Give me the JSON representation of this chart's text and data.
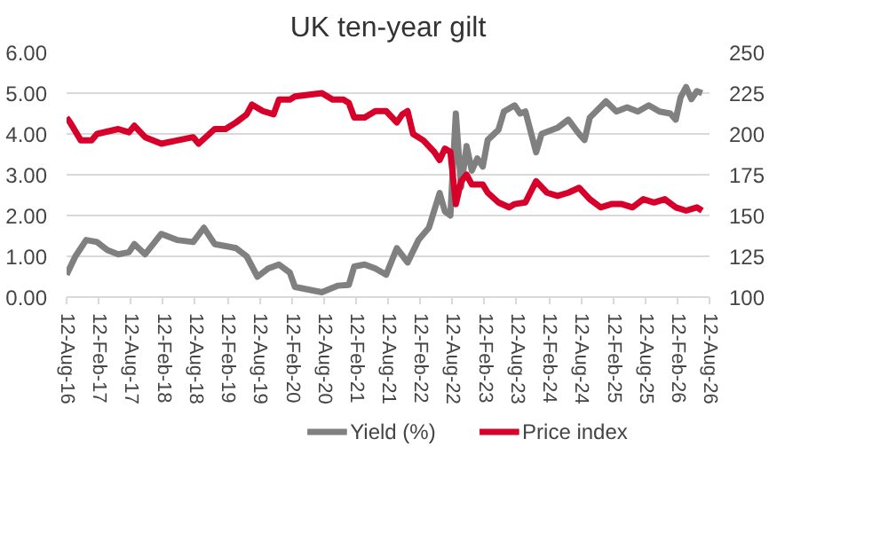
{
  "chart_data": {
    "type": "line",
    "title": "UK ten-year gilt",
    "legend": "bottom",
    "grid": "y",
    "xlim": [
      "2016-08-12",
      "2026-08-12"
    ],
    "xticks": [
      {
        "value": "2016-08-12",
        "label": "12-Aug-16"
      },
      {
        "value": "2017-02-12",
        "label": "12-Feb-17"
      },
      {
        "value": "2017-08-12",
        "label": "12-Aug-17"
      },
      {
        "value": "2018-02-12",
        "label": "12-Feb-18"
      },
      {
        "value": "2018-08-12",
        "label": "12-Aug-18"
      },
      {
        "value": "2019-02-12",
        "label": "12-Feb-19"
      },
      {
        "value": "2019-08-12",
        "label": "12-Aug-19"
      },
      {
        "value": "2020-02-12",
        "label": "12-Feb-20"
      },
      {
        "value": "2020-08-12",
        "label": "12-Aug-20"
      },
      {
        "value": "2021-02-12",
        "label": "12-Feb-21"
      },
      {
        "value": "2021-08-12",
        "label": "12-Aug-21"
      },
      {
        "value": "2022-02-12",
        "label": "12-Feb-22"
      },
      {
        "value": "2022-08-12",
        "label": "12-Aug-22"
      },
      {
        "value": "2023-02-12",
        "label": "12-Feb-23"
      },
      {
        "value": "2023-08-12",
        "label": "12-Aug-23"
      },
      {
        "value": "2024-02-12",
        "label": "12-Feb-24"
      },
      {
        "value": "2024-08-12",
        "label": "12-Aug-24"
      },
      {
        "value": "2025-02-12",
        "label": "12-Feb-25"
      },
      {
        "value": "2025-08-12",
        "label": "12-Aug-25"
      },
      {
        "value": "2026-02-12",
        "label": "12-Feb-26"
      },
      {
        "value": "2026-08-12",
        "label": "12-Aug-26"
      }
    ],
    "ylim": [
      0,
      6
    ],
    "yticks": [
      {
        "value": 0,
        "label": "0.00"
      },
      {
        "value": 1,
        "label": "1.00"
      },
      {
        "value": 2,
        "label": "2.00"
      },
      {
        "value": 3,
        "label": "3.00"
      },
      {
        "value": 4,
        "label": "4.00"
      },
      {
        "value": 5,
        "label": "5.00"
      },
      {
        "value": 6,
        "label": "6.00"
      }
    ],
    "y2lim": [
      100,
      250
    ],
    "y2ticks": [
      100,
      125,
      150,
      175,
      200,
      225,
      250
    ],
    "series": [
      {
        "name": "Yield (%)",
        "color": "#808080",
        "x": [
          "2016-08-12",
          "2016-10",
          "2016-12",
          "2017-02",
          "2017-04",
          "2017-06",
          "2017-08",
          "2017-09",
          "2017-11",
          "2018-02",
          "2018-05",
          "2018-08",
          "2018-10",
          "2018-12",
          "2019-02",
          "2019-04",
          "2019-06",
          "2019-08",
          "2019-10",
          "2019-12",
          "2020-02",
          "2020-03",
          "2020-08",
          "2020-11",
          "2021-01",
          "2021-02",
          "2021-04",
          "2021-06",
          "2021-08",
          "2021-10",
          "2021-12",
          "2022-02",
          "2022-04",
          "2022-06",
          "2022-07",
          "2022-08",
          "2022-09",
          "2022-10",
          "2022-11",
          "2022-12",
          "2023-01",
          "2023-02",
          "2023-03",
          "2023-05",
          "2023-06",
          "2023-08",
          "2023-09",
          "2023-10",
          "2023-12",
          "2024-01",
          "2024-04",
          "2024-06",
          "2024-08",
          "2024-09",
          "2024-10",
          "2025-01",
          "2025-03",
          "2025-05",
          "2025-07",
          "2025-09",
          "2025-11",
          "2026-01",
          "2026-02",
          "2026-03",
          "2026-04",
          "2026-05",
          "2026-06",
          "2026-07"
        ],
        "values": [
          0.55,
          1.0,
          1.4,
          1.35,
          1.15,
          1.05,
          1.1,
          1.3,
          1.05,
          1.55,
          1.4,
          1.35,
          1.7,
          1.3,
          1.25,
          1.2,
          1.0,
          0.5,
          0.7,
          0.8,
          0.6,
          0.25,
          0.12,
          0.28,
          0.3,
          0.75,
          0.8,
          0.7,
          0.55,
          1.2,
          0.85,
          1.4,
          1.7,
          2.55,
          2.1,
          2.0,
          4.5,
          2.7,
          3.7,
          3.1,
          3.4,
          3.2,
          3.85,
          4.1,
          4.55,
          4.7,
          4.5,
          4.55,
          3.55,
          4.0,
          4.15,
          4.35,
          4.0,
          3.85,
          4.4,
          4.8,
          4.55,
          4.65,
          4.55,
          4.7,
          4.55,
          4.5,
          4.35,
          4.9,
          5.15,
          4.85,
          5.05,
          5.0
        ]
      },
      {
        "name": "Price index",
        "color": "#d7002b",
        "axis": "y2",
        "x": [
          "2016-08-12",
          "2016-09",
          "2016-11",
          "2017-01",
          "2017-02",
          "2017-06",
          "2017-08",
          "2017-09",
          "2017-11",
          "2018-02",
          "2018-05",
          "2018-08",
          "2018-09",
          "2018-12",
          "2019-02",
          "2019-04",
          "2019-06",
          "2019-07",
          "2019-09",
          "2019-11",
          "2019-12",
          "2020-02",
          "2020-03",
          "2020-08",
          "2020-10",
          "2020-12",
          "2021-01",
          "2021-02",
          "2021-04",
          "2021-06",
          "2021-08",
          "2021-10",
          "2021-11",
          "2021-12",
          "2022-01",
          "2022-03",
          "2022-05",
          "2022-06",
          "2022-07",
          "2022-08",
          "2022-09",
          "2022-10",
          "2022-11",
          "2022-12",
          "2023-02",
          "2023-03",
          "2023-05",
          "2023-07",
          "2023-08",
          "2023-10",
          "2023-12",
          "2024-02",
          "2024-04",
          "2024-06",
          "2024-08",
          "2024-10",
          "2024-12",
          "2025-02",
          "2025-04",
          "2025-06",
          "2025-08",
          "2025-10",
          "2025-12",
          "2026-02",
          "2026-04",
          "2026-06",
          "2026-07"
        ],
        "values": [
          210,
          207,
          196,
          196,
          200,
          203,
          201,
          205,
          198,
          194,
          196,
          198,
          194,
          203,
          203,
          207,
          212,
          218,
          214,
          212,
          221,
          221,
          223,
          225,
          221,
          221,
          219,
          210,
          210,
          214,
          214,
          207,
          212,
          214,
          200,
          196,
          189,
          184,
          191,
          189,
          157,
          171,
          175,
          169,
          169,
          164,
          158,
          155,
          157,
          158,
          171,
          164,
          162,
          164,
          167,
          160,
          155,
          157,
          157,
          155,
          160,
          158,
          160,
          155,
          153,
          155,
          153
        ]
      }
    ]
  }
}
